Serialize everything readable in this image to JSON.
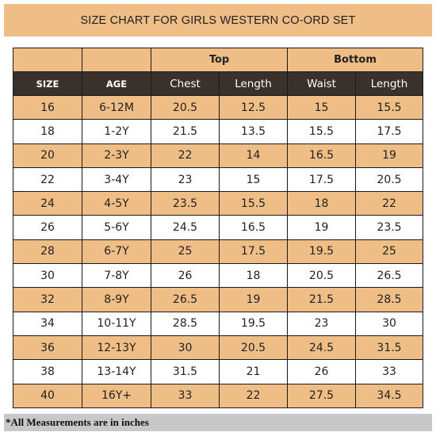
{
  "title": "SIZE CHART FOR GIRLS WESTERN CO-ORD SET",
  "group_headers": {
    "top": "Top",
    "bottom": "Bottom"
  },
  "columns": {
    "size": "SIZE",
    "age": "AGE",
    "chest": "Chest",
    "top_length": "Length",
    "waist": "Waist",
    "bottom_length": "Length"
  },
  "rows": [
    {
      "size": "16",
      "age": "6-12M",
      "chest": "20.5",
      "top_length": "12.5",
      "waist": "15",
      "bottom_length": "15.5"
    },
    {
      "size": "18",
      "age": "1-2Y",
      "chest": "21.5",
      "top_length": "13.5",
      "waist": "15.5",
      "bottom_length": "17.5"
    },
    {
      "size": "20",
      "age": "2-3Y",
      "chest": "22",
      "top_length": "14",
      "waist": "16.5",
      "bottom_length": "19"
    },
    {
      "size": "22",
      "age": "3-4Y",
      "chest": "23",
      "top_length": "15",
      "waist": "17.5",
      "bottom_length": "20.5"
    },
    {
      "size": "24",
      "age": "4-5Y",
      "chest": "23.5",
      "top_length": "15.5",
      "waist": "18",
      "bottom_length": "22"
    },
    {
      "size": "26",
      "age": "5-6Y",
      "chest": "24.5",
      "top_length": "16.5",
      "waist": "19",
      "bottom_length": "23.5"
    },
    {
      "size": "28",
      "age": "6-7Y",
      "chest": "25",
      "top_length": "17.5",
      "waist": "19.5",
      "bottom_length": "25"
    },
    {
      "size": "30",
      "age": "7-8Y",
      "chest": "26",
      "top_length": "18",
      "waist": "20.5",
      "bottom_length": "26.5"
    },
    {
      "size": "32",
      "age": "8-9Y",
      "chest": "26.5",
      "top_length": "19",
      "waist": "21.5",
      "bottom_length": "28.5"
    },
    {
      "size": "34",
      "age": "10-11Y",
      "chest": "28.5",
      "top_length": "19.5",
      "waist": "23",
      "bottom_length": "30"
    },
    {
      "size": "36",
      "age": "12-13Y",
      "chest": "30",
      "top_length": "20.5",
      "waist": "24.5",
      "bottom_length": "31.5"
    },
    {
      "size": "38",
      "age": "13-14Y",
      "chest": "31.5",
      "top_length": "21",
      "waist": "26",
      "bottom_length": "33"
    },
    {
      "size": "40",
      "age": "16Y+",
      "chest": "33",
      "top_length": "22",
      "waist": "27.5",
      "bottom_length": "34.5"
    }
  ],
  "footnote": "*All Measurements are in inches",
  "colors": {
    "accent": "#efbe87",
    "header_dark": "#3a302c",
    "footnote_bg": "#c8c8c8"
  }
}
